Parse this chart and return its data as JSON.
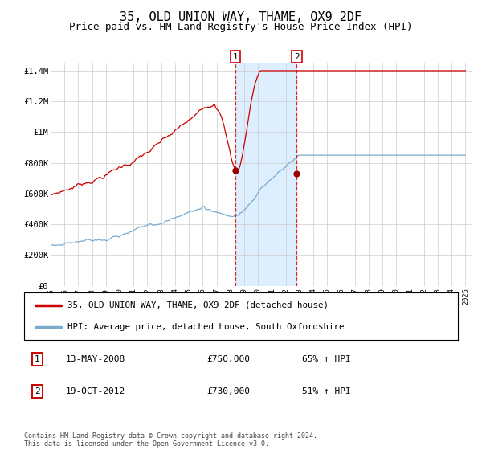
{
  "title": "35, OLD UNION WAY, THAME, OX9 2DF",
  "subtitle": "Price paid vs. HM Land Registry's House Price Index (HPI)",
  "title_fontsize": 11,
  "subtitle_fontsize": 9,
  "ylim": [
    0,
    1450000
  ],
  "xlim_start": 1995.0,
  "xlim_end": 2025.5,
  "yticks": [
    0,
    200000,
    400000,
    600000,
    800000,
    1000000,
    1200000,
    1400000
  ],
  "ytick_labels": [
    "£0",
    "£200K",
    "£400K",
    "£600K",
    "£800K",
    "£1M",
    "£1.2M",
    "£1.4M"
  ],
  "xticks": [
    1995,
    1996,
    1997,
    1998,
    1999,
    2000,
    2001,
    2002,
    2003,
    2004,
    2005,
    2006,
    2007,
    2008,
    2009,
    2010,
    2011,
    2012,
    2013,
    2014,
    2015,
    2016,
    2017,
    2018,
    2019,
    2020,
    2021,
    2022,
    2023,
    2024,
    2025
  ],
  "red_line_color": "#cc0000",
  "blue_line_color": "#7aabcf",
  "shade_color": "#ddeeff",
  "marker1_date": 2008.37,
  "marker1_value": 750000,
  "marker2_date": 2012.8,
  "marker2_value": 730000,
  "vline1_x": 2008.37,
  "vline2_x": 2012.8,
  "legend_red_label": "35, OLD UNION WAY, THAME, OX9 2DF (detached house)",
  "legend_blue_label": "HPI: Average price, detached house, South Oxfordshire",
  "annotation1_label": "13-MAY-2008",
  "annotation1_price": "£750,000",
  "annotation1_hpi": "65% ↑ HPI",
  "annotation2_label": "19-OCT-2012",
  "annotation2_price": "£730,000",
  "annotation2_hpi": "51% ↑ HPI",
  "footer": "Contains HM Land Registry data © Crown copyright and database right 2024.\nThis data is licensed under the Open Government Licence v3.0.",
  "background_color": "#ffffff",
  "grid_color": "#cccccc"
}
